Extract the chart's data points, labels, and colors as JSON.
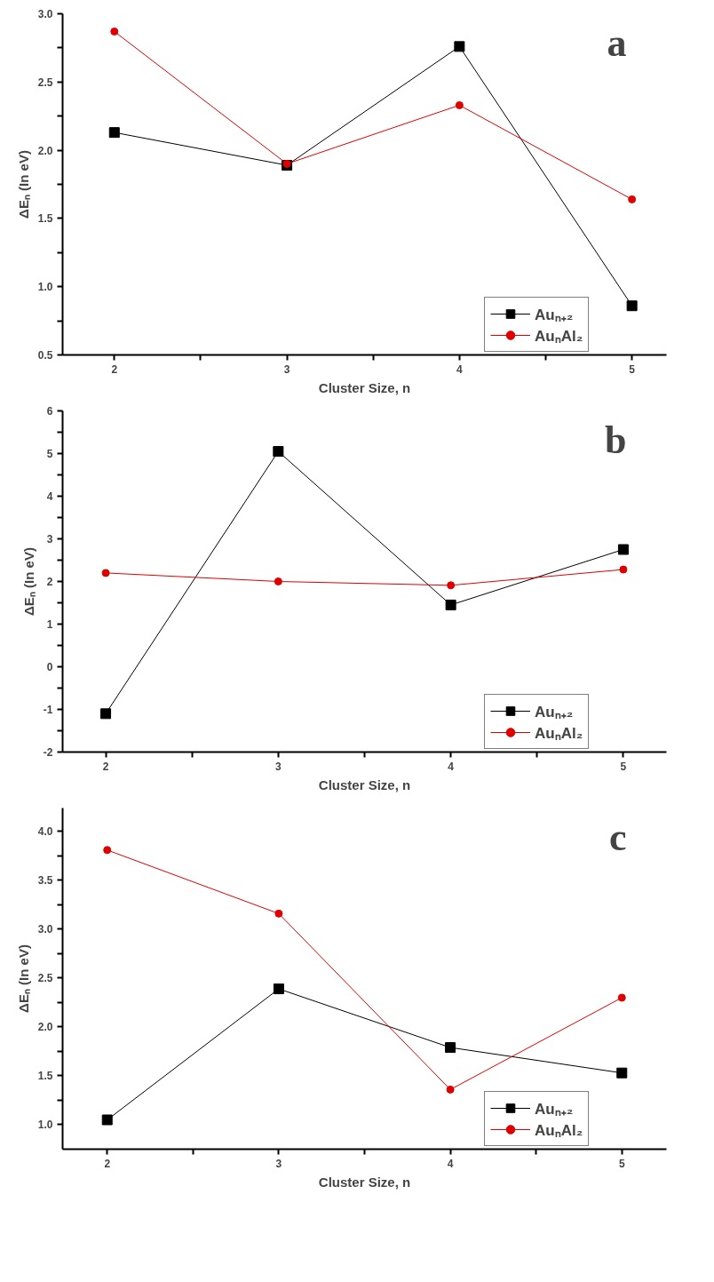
{
  "chart_data": [
    {
      "type": "line",
      "annotations": [
        "a"
      ],
      "xlabel": "Cluster Size, n",
      "ylabel": "ΔEₙ (In eV)",
      "x": [
        2,
        3,
        4,
        5
      ],
      "xlim": [
        1.7,
        5.2
      ],
      "xticks": [
        2,
        {
          "value": 2.5,
          "label": null
        },
        3,
        {
          "value": 3.5,
          "label": null
        },
        4,
        {
          "value": 4.5,
          "label": null
        },
        5
      ],
      "ylim": [
        0.5,
        3.0
      ],
      "yticks": [
        0.5,
        {
          "value": 0.75,
          "label": null
        },
        {
          "value": 1,
          "label": "1.0"
        },
        {
          "value": 1.25,
          "label": null
        },
        1.5,
        {
          "value": 1.75,
          "label": null
        },
        {
          "value": 2,
          "label": "2.0"
        },
        {
          "value": 2.25,
          "label": null
        },
        2.5,
        {
          "value": 2.75,
          "label": null
        },
        {
          "value": 3,
          "label": "3.0"
        }
      ],
      "grid": false,
      "legend": "bottom right",
      "series": [
        {
          "name": "Auₙ₊₂",
          "color": "#000000",
          "marker": "square",
          "values": [
            2.13,
            1.89,
            2.76,
            0.86
          ]
        },
        {
          "name": "AuₙAl₂",
          "color": "#e00000",
          "marker": "circle",
          "values": [
            2.87,
            1.9,
            2.33,
            1.64
          ]
        }
      ]
    },
    {
      "type": "line",
      "annotations": [
        "b"
      ],
      "xlabel": "Cluster Size, n",
      "ylabel": "ΔEₙ (In eV)",
      "x": [
        2,
        3,
        4,
        5
      ],
      "xlim": [
        1.75,
        5.25
      ],
      "xticks": [
        2,
        {
          "value": 2.5,
          "label": null
        },
        3,
        {
          "value": 3.5,
          "label": null
        },
        4,
        {
          "value": 4.5,
          "label": null
        },
        5
      ],
      "ylim": [
        -2,
        6
      ],
      "yticks": [
        -2,
        {
          "value": -1.5,
          "label": null
        },
        -1,
        {
          "value": -0.5,
          "label": null
        },
        0,
        {
          "value": 0.5,
          "label": null
        },
        1,
        {
          "value": 1.5,
          "label": null
        },
        2,
        {
          "value": 2.5,
          "label": null
        },
        3,
        {
          "value": 3.5,
          "label": null
        },
        4,
        {
          "value": 4.5,
          "label": null
        },
        5,
        {
          "value": 5.5,
          "label": null
        },
        6
      ],
      "grid": false,
      "legend": "bottom right",
      "series": [
        {
          "name": "Auₙ₊₂",
          "color": "#000000",
          "marker": "square",
          "values": [
            -1.1,
            5.05,
            1.45,
            2.75
          ]
        },
        {
          "name": "AuₙAl₂",
          "color": "#e00000",
          "marker": "circle",
          "values": [
            2.2,
            2.0,
            1.91,
            2.28
          ]
        }
      ]
    },
    {
      "type": "line",
      "annotations": [
        "c"
      ],
      "xlabel": "Cluster Size, n",
      "ylabel": "ΔEₙ (In eV)",
      "x": [
        2,
        3,
        4,
        5
      ],
      "xlim": [
        1.74,
        5.26
      ],
      "xticks": [
        2,
        {
          "value": 2.5,
          "label": null
        },
        3,
        {
          "value": 3.5,
          "label": null
        },
        4,
        {
          "value": 4.5,
          "label": null
        },
        5
      ],
      "ylim": [
        0.75,
        4.24
      ],
      "yticks": [
        {
          "value": 1,
          "label": "1.0"
        },
        {
          "value": 1.25,
          "label": null
        },
        1.5,
        {
          "value": 1.75,
          "label": null
        },
        {
          "value": 2,
          "label": "2.0"
        },
        {
          "value": 2.25,
          "label": null
        },
        2.5,
        {
          "value": 2.75,
          "label": null
        },
        {
          "value": 3,
          "label": "3.0"
        },
        {
          "value": 3.25,
          "label": null
        },
        3.5,
        {
          "value": 3.75,
          "label": null
        },
        {
          "value": 4,
          "label": "4.0"
        }
      ],
      "grid": false,
      "legend": "bottom right",
      "series": [
        {
          "name": "Auₙ₊₂",
          "color": "#000000",
          "marker": "square",
          "values": [
            1.05,
            2.39,
            1.79,
            1.53
          ]
        },
        {
          "name": "AuₙAl₂",
          "color": "#e00000",
          "marker": "circle",
          "values": [
            3.81,
            3.16,
            1.36,
            2.3
          ]
        }
      ]
    }
  ]
}
